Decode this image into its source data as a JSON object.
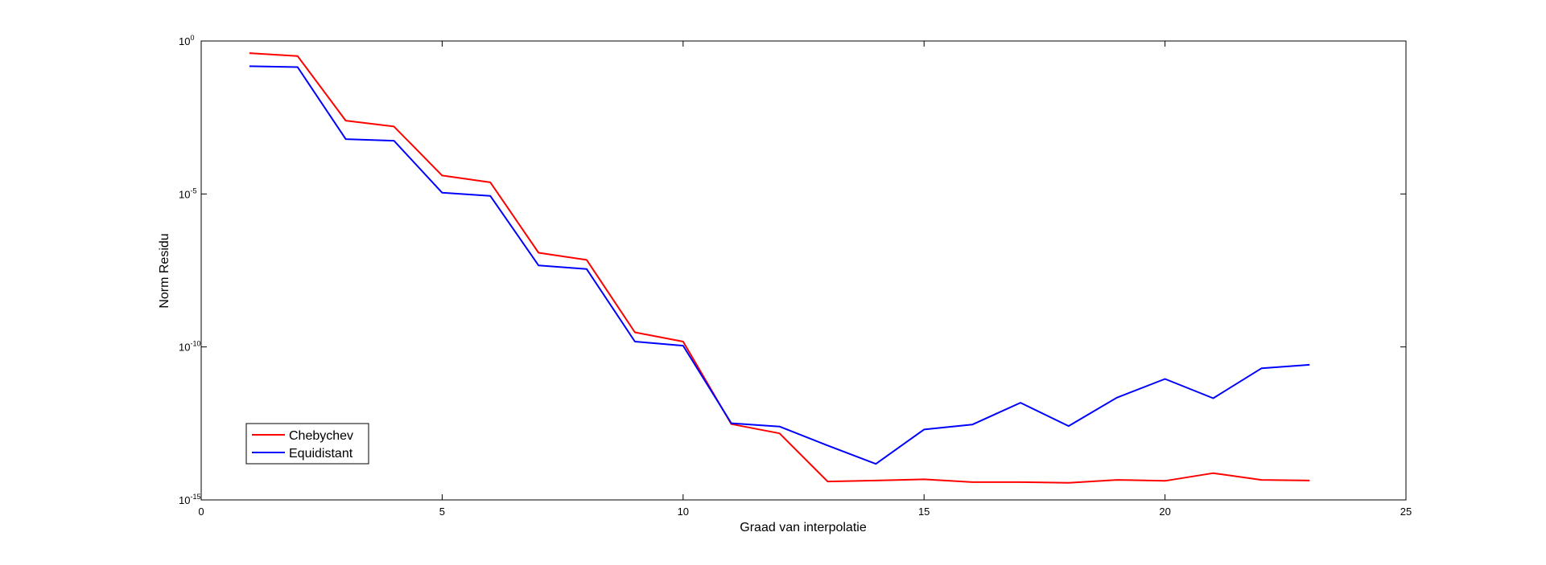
{
  "chart_data": {
    "type": "line",
    "title": "",
    "xlabel": "Graad van interpolatie",
    "ylabel": "Norm Residu",
    "xlim": [
      0,
      25
    ],
    "ylim": [
      1e-15,
      1
    ],
    "yscale": "log",
    "grid": false,
    "legend_position": "bottom-left",
    "x_ticks": [
      "0",
      "5",
      "10",
      "15",
      "20",
      "25"
    ],
    "y_ticks": [
      {
        "base": "10",
        "exp": "0",
        "value": 1
      },
      {
        "base": "10",
        "exp": "-5",
        "value": 1e-05
      },
      {
        "base": "10",
        "exp": "-10",
        "value": 1e-10
      },
      {
        "base": "10",
        "exp": "-15",
        "value": 1e-15
      }
    ],
    "x": [
      1,
      2,
      3,
      4,
      5,
      6,
      7,
      8,
      9,
      10,
      11,
      12,
      13,
      14,
      15,
      16,
      17,
      18,
      19,
      20,
      21,
      22,
      23
    ],
    "series": [
      {
        "name": "Chebychev",
        "color": "#ff0000",
        "values": [
          0.4,
          0.32,
          0.0025,
          0.0016,
          4e-05,
          2.4e-05,
          1.2e-07,
          7e-08,
          3e-10,
          1.5e-10,
          3e-13,
          1.5e-13,
          4e-15,
          4.3e-15,
          4.7e-15,
          3.8e-15,
          3.8e-15,
          3.6e-15,
          4.5e-15,
          4.2e-15,
          7.5e-15,
          4.5e-15,
          4.3e-15
        ]
      },
      {
        "name": "Equidistant",
        "color": "#0000ff",
        "values": [
          0.15,
          0.14,
          0.00062,
          0.00055,
          1.1e-05,
          8.6e-06,
          4.6e-08,
          3.5e-08,
          1.5e-10,
          1.1e-10,
          3.2e-13,
          2.5e-13,
          6e-14,
          1.5e-14,
          2e-13,
          2.9e-13,
          1.5e-12,
          2.6e-13,
          2.2e-12,
          9e-12,
          2.1e-12,
          2e-11,
          2.6e-11
        ]
      }
    ]
  }
}
